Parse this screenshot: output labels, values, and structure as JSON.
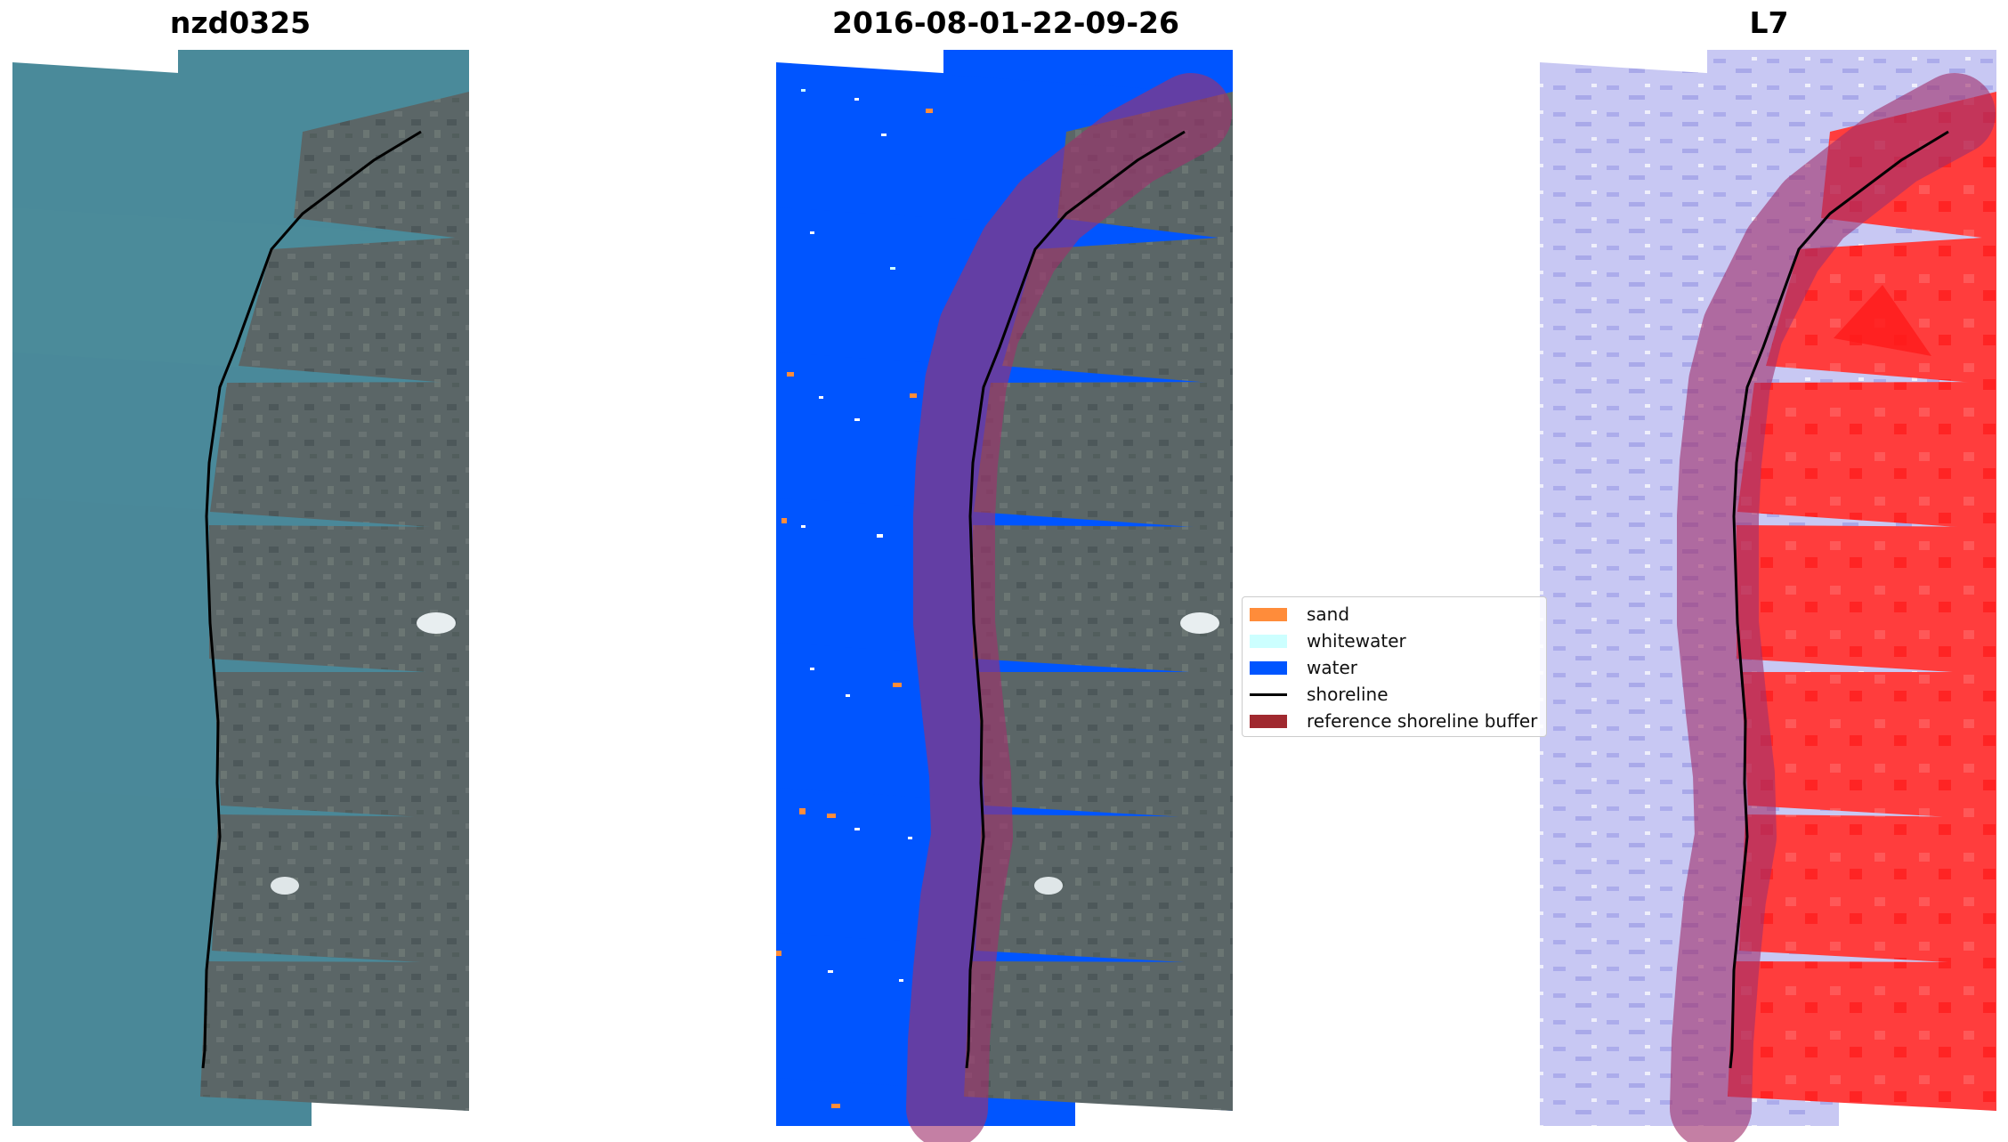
{
  "panels": [
    {
      "title": "nzd0325"
    },
    {
      "title": "2016-08-01-22-09-26"
    },
    {
      "title": "L7"
    }
  ],
  "legend": {
    "items": [
      {
        "label": "sand",
        "color": "#ff8c3a",
        "kind": "patch"
      },
      {
        "label": "whitewater",
        "color": "#ccffff",
        "kind": "patch"
      },
      {
        "label": "water",
        "color": "#0055ff",
        "kind": "patch"
      },
      {
        "label": "shoreline",
        "color": "#000000",
        "kind": "line"
      },
      {
        "label": "reference shoreline buffer",
        "color": "#a0292f",
        "kind": "patch"
      }
    ]
  },
  "colors": {
    "sea_rgb": "#4a8a9a",
    "land_rgb": "#5a6566",
    "water_class": "#0055ff",
    "buffer_overlay": "#a0306c",
    "index_water": "#c9c9f2",
    "index_land": "#ff3a3a"
  }
}
